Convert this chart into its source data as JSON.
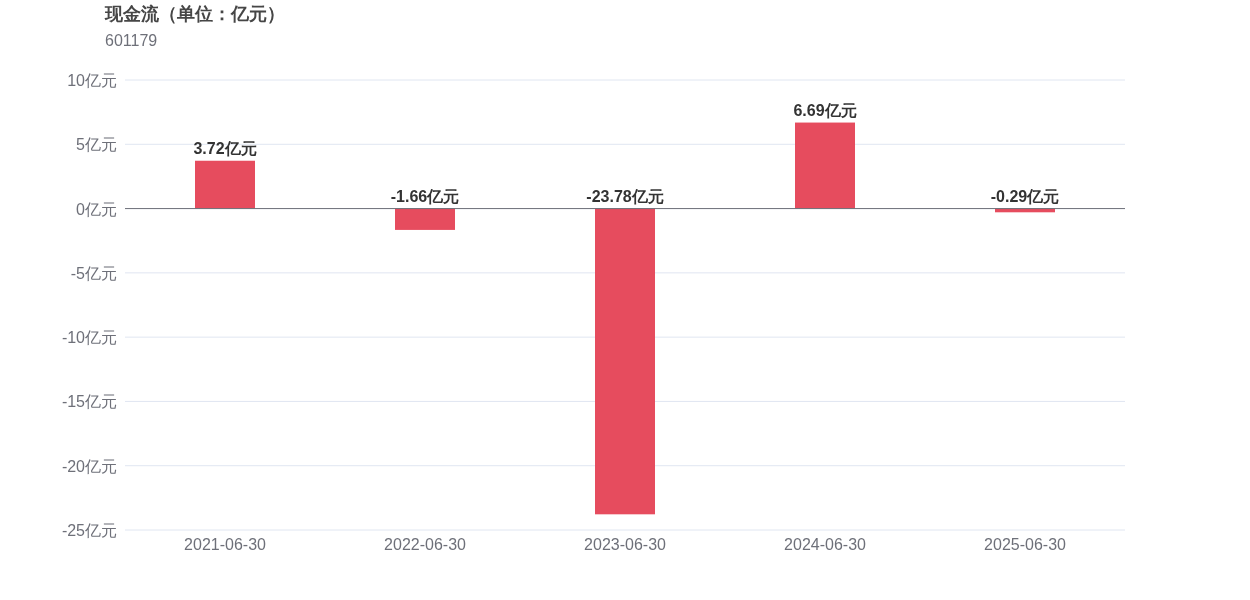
{
  "chart_data": {
    "type": "bar",
    "title": "现金流（单位：亿元）",
    "subtitle": "601179",
    "categories": [
      "2021-06-30",
      "2022-06-30",
      "2023-06-30",
      "2024-06-30",
      "2025-06-30"
    ],
    "values": [
      3.72,
      -1.66,
      -23.78,
      6.69,
      -0.29
    ],
    "value_labels": [
      "3.72亿元",
      "-1.66亿元",
      "-23.78亿元",
      "6.69亿元",
      "-0.29亿元"
    ],
    "color": "#e64c5e",
    "ylim": [
      -25,
      10
    ],
    "yticks": [
      {
        "value": 10,
        "label": "10亿元"
      },
      {
        "value": 5,
        "label": "5亿元"
      },
      {
        "value": 0,
        "label": "0亿元"
      },
      {
        "value": -5,
        "label": "-5亿元"
      },
      {
        "value": -10,
        "label": "-10亿元"
      },
      {
        "value": -15,
        "label": "-15亿元"
      },
      {
        "value": -20,
        "label": "-20亿元"
      },
      {
        "value": -25,
        "label": "-25亿元"
      }
    ],
    "grid": "y"
  }
}
